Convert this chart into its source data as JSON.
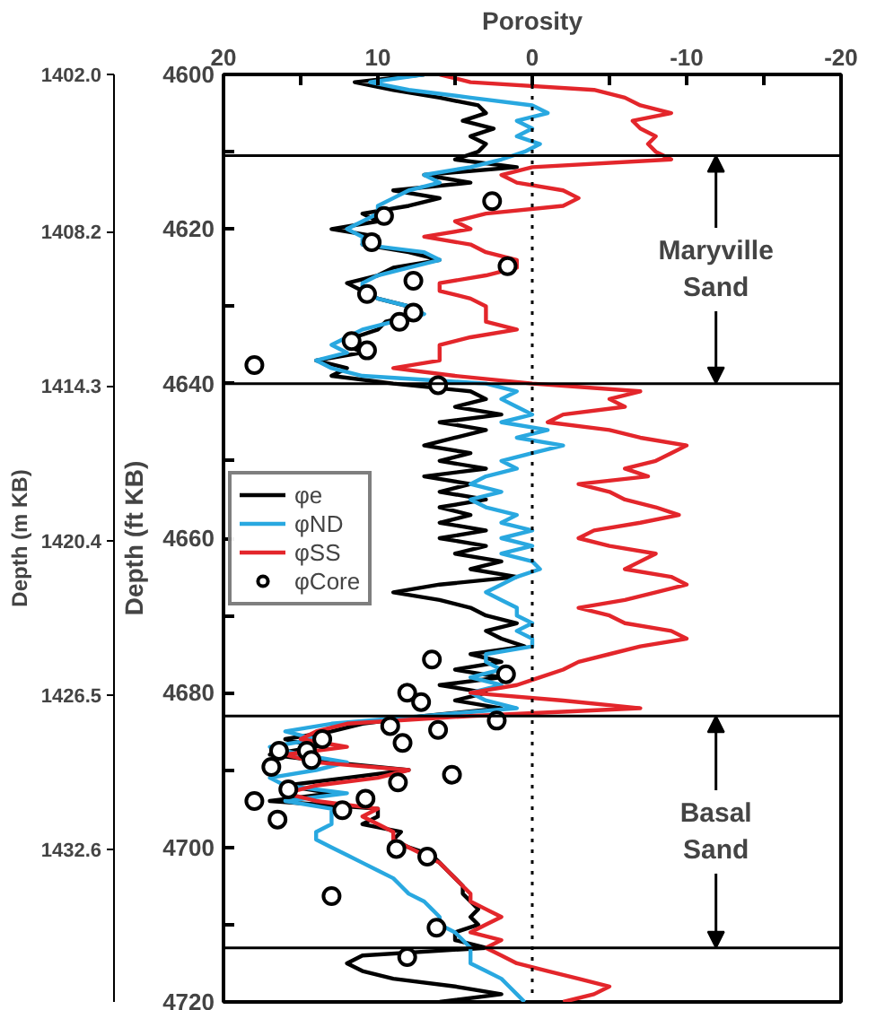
{
  "chart_data": {
    "type": "line",
    "xlabel": "Porosity",
    "ylabel": "Depth (ft KB)",
    "y2label": "Depth (m KB)",
    "xlim": [
      20,
      -20
    ],
    "xticks": [
      20,
      {
        "value": 15,
        "label": null
      },
      10,
      {
        "value": 5,
        "label": null
      },
      0,
      {
        "value": -5,
        "label": null
      },
      -10,
      {
        "value": -15,
        "label": null
      },
      -20
    ],
    "ylim": [
      4720,
      4600
    ],
    "yticks": [
      4600,
      {
        "value": 4610,
        "label": null
      },
      4620,
      {
        "value": 4630,
        "label": null
      },
      4640,
      {
        "value": 4650,
        "label": null
      },
      4660,
      {
        "value": 4670,
        "label": null
      },
      4680,
      {
        "value": 4690,
        "label": null
      },
      4700,
      {
        "value": 4710,
        "label": null
      },
      4720
    ],
    "y2lim": [
      1438.6,
      1402.0
    ],
    "y2ticks": [
      {
        "value": 1402.0,
        "label": "1402.0"
      },
      1408.2,
      1414.3,
      1420.4,
      1426.5,
      1432.6
    ],
    "grid": false,
    "legend": "left",
    "marker": "none",
    "line_style": "solid",
    "series": [
      {
        "name": "φe",
        "color": "#000000",
        "x": [
          7,
          11.5,
          9,
          6,
          3.5,
          3,
          4.5,
          2.5,
          4,
          3,
          3.5,
          5,
          1,
          7,
          4,
          9,
          6,
          8,
          11,
          10,
          13,
          10,
          11,
          8,
          6,
          9,
          10,
          12,
          11,
          10,
          8,
          7.5,
          9.5,
          10,
          11.5,
          12,
          11,
          14,
          12,
          13,
          9,
          4,
          3,
          5,
          2,
          6,
          3,
          5,
          7,
          4,
          6,
          3,
          7,
          4,
          6,
          3,
          6,
          4,
          6,
          3,
          6,
          3,
          5,
          2,
          4,
          1,
          6,
          9,
          6,
          4,
          3,
          1,
          3,
          2,
          0.5,
          4,
          2,
          5,
          2,
          6,
          3,
          5,
          2,
          7,
          11,
          13,
          16,
          14,
          17,
          13,
          8,
          12,
          16,
          13,
          17,
          10,
          10,
          11,
          8.5,
          9,
          8,
          6.5,
          6,
          5.5,
          5,
          4.5,
          4.5,
          4,
          3.5,
          4,
          3.5,
          5,
          5,
          3,
          11,
          12,
          11,
          9,
          5,
          2,
          6
        ],
        "values": [
          4600,
          4601,
          4602,
          4603,
          4604,
          4605,
          4606,
          4607,
          4608,
          4609,
          4610,
          4611,
          4612,
          4613,
          4614,
          4615,
          4616,
          4617,
          4618,
          4619,
          4620,
          4621,
          4622,
          4623,
          4624,
          4625,
          4626,
          4627,
          4628,
          4629,
          4630,
          4631,
          4632,
          4633,
          4634,
          4635,
          4636,
          4637,
          4638,
          4639,
          4640,
          4641,
          4642,
          4643,
          4644,
          4645,
          4646,
          4647,
          4648,
          4649,
          4650,
          4651,
          4652,
          4653,
          4654,
          4655,
          4656,
          4657,
          4658,
          4659,
          4660,
          4661,
          4662,
          4663,
          4664,
          4665,
          4666,
          4667,
          4668,
          4669,
          4670,
          4671,
          4672,
          4673,
          4674,
          4675,
          4676,
          4677,
          4678,
          4679,
          4680,
          4681,
          4682,
          4683,
          4684,
          4685,
          4686,
          4687,
          4688,
          4689,
          4690,
          4691,
          4692,
          4693,
          4694,
          4695,
          4696,
          4697,
          4698,
          4699,
          4700,
          4701,
          4702,
          4703,
          4704,
          4705,
          4706,
          4707,
          4708,
          4709,
          4710,
          4711,
          4712,
          4713,
          4714,
          4715,
          4716,
          4717,
          4718,
          4719,
          4720
        ]
      },
      {
        "name": "φND",
        "color": "#29a8e0",
        "x": [
          7,
          10.5,
          8,
          4,
          0,
          -1,
          1,
          0,
          1,
          -0.5,
          0.5,
          2,
          4,
          7,
          6,
          8,
          9,
          10,
          10,
          11,
          12,
          11,
          11,
          7,
          6,
          8,
          10,
          11,
          11,
          10,
          8,
          7,
          9,
          11,
          12,
          13,
          12,
          14,
          13,
          11,
          3,
          1,
          2,
          1,
          0,
          2,
          -1,
          1,
          -2,
          0,
          2,
          1,
          3,
          4,
          2,
          4,
          3,
          1,
          2,
          0,
          2,
          0,
          2,
          0,
          -0.5,
          1,
          2,
          3,
          2,
          1,
          1,
          0,
          1,
          0,
          0,
          3,
          3,
          2,
          4,
          2,
          4,
          3,
          1,
          7,
          13,
          16,
          14,
          17,
          15,
          12,
          14,
          17,
          16,
          12,
          16,
          13,
          13,
          13,
          14,
          14,
          13,
          12,
          11,
          10,
          9,
          8.5,
          8,
          7,
          6.5,
          6,
          6,
          5,
          4.5,
          4,
          4,
          4,
          3,
          2,
          1.5,
          1,
          0.5
        ],
        "values": [
          4600,
          4601,
          4602,
          4603,
          4604,
          4605,
          4606,
          4607,
          4608,
          4609,
          4610,
          4611,
          4612,
          4613,
          4614,
          4615,
          4616,
          4617,
          4618,
          4619,
          4620,
          4621,
          4622,
          4623,
          4624,
          4625,
          4626,
          4627,
          4628,
          4629,
          4630,
          4631,
          4632,
          4633,
          4634,
          4635,
          4636,
          4637,
          4638,
          4639,
          4640,
          4641,
          4642,
          4643,
          4644,
          4645,
          4646,
          4647,
          4648,
          4649,
          4650,
          4651,
          4652,
          4653,
          4654,
          4655,
          4656,
          4657,
          4658,
          4659,
          4660,
          4661,
          4662,
          4663,
          4664,
          4665,
          4666,
          4667,
          4668,
          4669,
          4670,
          4671,
          4672,
          4673,
          4674,
          4675,
          4676,
          4677,
          4678,
          4679,
          4680,
          4681,
          4682,
          4683,
          4684,
          4685,
          4686,
          4687,
          4688,
          4689,
          4690,
          4691,
          4692,
          4693,
          4694,
          4695,
          4696,
          4697,
          4698,
          4699,
          4700,
          4701,
          4702,
          4703,
          4704,
          4705,
          4706,
          4707,
          4708,
          4709,
          4710,
          4711,
          4712,
          4713,
          4714,
          4715,
          4716,
          4717,
          4718,
          4719,
          4720
        ]
      },
      {
        "name": "φSS",
        "color": "#e3262b",
        "x": [
          6,
          4,
          -4,
          -6,
          -7,
          -9,
          -6.5,
          -7,
          -8,
          -7.5,
          -8,
          -9,
          0,
          2,
          1,
          -2,
          -3,
          -2,
          3,
          5,
          4,
          7,
          4,
          3,
          1,
          1,
          3,
          6,
          6,
          4,
          3,
          3,
          3,
          1,
          4,
          6,
          6,
          6,
          9,
          5,
          0,
          -7,
          -5,
          -6,
          -2,
          -1,
          -5,
          -7,
          -10,
          -9,
          -8,
          -6,
          -7.5,
          -3,
          -5,
          -6,
          -8,
          -9.5,
          -7,
          -4,
          -3,
          -5,
          -8,
          -7,
          -6,
          -9,
          -10,
          -8,
          -6,
          -3,
          -5,
          -6,
          -9,
          -10,
          -7,
          -5,
          -3,
          -2,
          -0.5,
          1,
          4,
          -2,
          -7,
          4,
          12,
          14,
          15,
          12,
          16,
          14,
          8,
          10,
          14,
          16,
          14,
          10,
          11,
          10,
          9,
          9,
          8,
          7,
          6,
          5.5,
          5,
          4.5,
          4,
          4,
          3,
          2,
          3,
          4,
          2,
          3,
          2,
          1,
          -1,
          -3,
          -5,
          -4,
          -2
        ],
        "values": [
          4600,
          4601,
          4602,
          4603,
          4604,
          4605,
          4606,
          4607,
          4608,
          4609,
          4610,
          4611,
          4612,
          4613,
          4614,
          4615,
          4616,
          4617,
          4618,
          4619,
          4620,
          4621,
          4622,
          4623,
          4624,
          4625,
          4626,
          4627,
          4628,
          4629,
          4630,
          4631,
          4632,
          4633,
          4634,
          4635,
          4636,
          4637,
          4638,
          4639,
          4640,
          4641,
          4642,
          4643,
          4644,
          4645,
          4646,
          4647,
          4648,
          4649,
          4650,
          4651,
          4652,
          4653,
          4654,
          4655,
          4656,
          4657,
          4658,
          4659,
          4660,
          4661,
          4662,
          4663,
          4664,
          4665,
          4666,
          4667,
          4668,
          4669,
          4670,
          4671,
          4672,
          4673,
          4674,
          4675,
          4676,
          4677,
          4678,
          4679,
          4680,
          4681,
          4682,
          4683,
          4684,
          4685,
          4686,
          4687,
          4688,
          4689,
          4690,
          4691,
          4692,
          4693,
          4694,
          4695,
          4696,
          4697,
          4698,
          4699,
          4700,
          4701,
          4702,
          4703,
          4704,
          4705,
          4706,
          4707,
          4708,
          4709,
          4710,
          4711,
          4712,
          4713,
          4714,
          4715,
          4716,
          4717,
          4718,
          4719,
          4720
        ]
      },
      {
        "name": "φCore",
        "type": "scatter",
        "marker": "circle",
        "color": "#000000",
        "x": [
          2.6,
          9.6,
          10.4,
          1.6,
          7.7,
          10.7,
          7.7,
          8.6,
          11.7,
          10.7,
          18,
          6.1,
          6.5,
          1.7,
          8.1,
          7.2,
          2.3,
          9.2,
          6.1,
          13.6,
          8.4,
          16.4,
          14.6,
          14.3,
          16.9,
          5.2,
          8.7,
          15.8,
          10.8,
          18,
          12.3,
          16.5,
          8.8,
          6.8,
          13,
          6.2,
          8.1
        ],
        "values": [
          4616.4,
          4618.3,
          4621.7,
          4624.8,
          4626.7,
          4628.4,
          4630.8,
          4632,
          4634.5,
          4635.7,
          4637.6,
          4640.2,
          4675.7,
          4677.6,
          4680,
          4681.2,
          4683.6,
          4684.3,
          4684.8,
          4686,
          4686.5,
          4687.5,
          4687.5,
          4688.7,
          4689.6,
          4690.6,
          4691.6,
          4692.5,
          4693.7,
          4694,
          4695.2,
          4696.4,
          4700.2,
          4701.2,
          4706.3,
          4710.4,
          4714.2
        ]
      }
    ],
    "ref_lines": [
      {
        "axis": "y",
        "value": 4610.5,
        "color": "#000000",
        "line_style": "solid"
      },
      {
        "axis": "y",
        "value": 4640,
        "color": "#000000",
        "line_style": "solid"
      },
      {
        "axis": "y",
        "value": 4683,
        "color": "#000000",
        "line_style": "solid"
      },
      {
        "axis": "y",
        "value": 4713,
        "color": "#000000",
        "line_style": "solid"
      },
      {
        "axis": "x",
        "value": 0,
        "color": "#000000",
        "line_style": "dotted"
      }
    ],
    "annotations": [
      {
        "text": "Maryville\nSand",
        "x": -11.9,
        "y": 4640
      },
      {
        "text": "Basal\nSand",
        "x": -11.9,
        "y": 4713
      }
    ]
  }
}
